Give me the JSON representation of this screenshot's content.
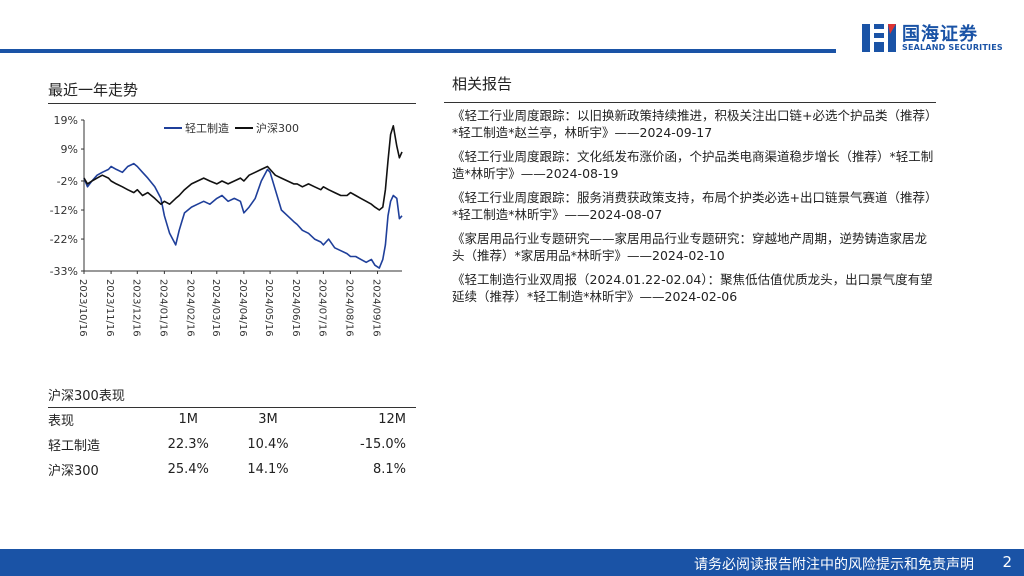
{
  "brand": {
    "name_cn": "国海证券",
    "name_en": "SEALAND SECURITIES",
    "color": "#1a53a6"
  },
  "left": {
    "title": "最近一年走势",
    "table": {
      "title": "沪深300表现",
      "header": [
        "表现",
        "1M",
        "3M",
        "12M"
      ],
      "rows": [
        [
          "轻工制造",
          "22.3%",
          "10.4%",
          "-15.0%"
        ],
        [
          "沪深300",
          "25.4%",
          "14.1%",
          "8.1%"
        ]
      ]
    }
  },
  "right": {
    "title": "相关报告",
    "reports": [
      "《轻工行业周度跟踪：以旧换新政策持续推进，积极关注出口链+必选个护品类（推荐）*轻工制造*赵兰亭，林昕宇》——2024-09-17",
      "《轻工行业周度跟踪：文化纸发布涨价函，个护品类电商渠道稳步增长（推荐）*轻工制造*林昕宇》——2024-08-19",
      "《轻工行业周度跟踪：服务消费获政策支持，布局个护类必选+出口链景气赛道（推荐）*轻工制造*林昕宇》——2024-08-07",
      "《家居用品行业专题研究——家居用品行业专题研究：穿越地产周期，逆势铸造家居龙头（推荐）*家居用品*林昕宇》——2024-02-10",
      "《轻工制造行业双周报（2024.01.22-02.04）：聚焦低估值优质龙头，出口景气度有望延续（推荐）*轻工制造*林昕宇》——2024-02-06"
    ]
  },
  "footer": {
    "disclaimer": "请务必阅读报告附注中的风险提示和免责声明",
    "page": "2"
  },
  "chart_data": {
    "type": "line",
    "title": "",
    "xlabel": "",
    "ylabel": "",
    "ylim": [
      -33,
      19
    ],
    "yticks": [
      "19%",
      "9%",
      "-2%",
      "-12%",
      "-22%",
      "-33%"
    ],
    "ytick_values": [
      19,
      9,
      -2,
      -12,
      -22,
      -33
    ],
    "xticks": [
      "2023/10/16",
      "2023/11/16",
      "2023/12/16",
      "2024/01/16",
      "2024/02/16",
      "2024/03/16",
      "2024/04/16",
      "2024/05/16",
      "2024/06/16",
      "2024/07/16",
      "2024/08/16",
      "2024/09/16"
    ],
    "grid": false,
    "legend": "top",
    "series": [
      {
        "name": "轻工制造",
        "color": "#1f3f9a",
        "x": [
          "2023/10/16",
          "2023/10/20",
          "2023/10/25",
          "2023/10/31",
          "2023/11/06",
          "2023/11/13",
          "2023/11/16",
          "2023/11/22",
          "2023/11/29",
          "2023/12/05",
          "2023/12/12",
          "2023/12/16",
          "2023/12/22",
          "2023/12/28",
          "2024/01/05",
          "2024/01/12",
          "2024/01/16",
          "2024/01/22",
          "2024/01/29",
          "2024/02/02",
          "2024/02/05",
          "2024/02/08",
          "2024/02/16",
          "2024/02/23",
          "2024/03/01",
          "2024/03/08",
          "2024/03/16",
          "2024/03/22",
          "2024/03/29",
          "2024/04/05",
          "2024/04/12",
          "2024/04/16",
          "2024/04/22",
          "2024/04/29",
          "2024/05/06",
          "2024/05/13",
          "2024/05/16",
          "2024/05/22",
          "2024/05/29",
          "2024/06/05",
          "2024/06/12",
          "2024/06/16",
          "2024/06/22",
          "2024/06/29",
          "2024/07/06",
          "2024/07/13",
          "2024/07/16",
          "2024/07/22",
          "2024/07/29",
          "2024/08/05",
          "2024/08/12",
          "2024/08/16",
          "2024/08/22",
          "2024/08/28",
          "2024/09/03",
          "2024/09/09",
          "2024/09/13",
          "2024/09/18",
          "2024/09/22",
          "2024/09/25",
          "2024/09/28",
          "2024/10/01",
          "2024/10/04",
          "2024/10/08",
          "2024/10/11",
          "2024/10/14"
        ],
        "values": [
          -1,
          -4,
          -2,
          0,
          1,
          2,
          3,
          2,
          1,
          3,
          4,
          3,
          1,
          -1,
          -4,
          -8,
          -14,
          -20,
          -24,
          -19,
          -16,
          -13,
          -11,
          -10,
          -9,
          -10,
          -8,
          -7,
          -9,
          -8,
          -9,
          -13,
          -11,
          -8,
          -2,
          2,
          1,
          -5,
          -12,
          -14,
          -16,
          -17,
          -19,
          -20,
          -22,
          -23,
          -24,
          -22,
          -25,
          -26,
          -27,
          -28,
          -28,
          -29,
          -30,
          -29,
          -31,
          -32,
          -29,
          -24,
          -14,
          -9,
          -7,
          -8,
          -15,
          -14
        ]
      },
      {
        "name": "沪深300",
        "color": "#111111",
        "x": [
          "2023/10/16",
          "2023/10/20",
          "2023/10/25",
          "2023/10/31",
          "2023/11/06",
          "2023/11/13",
          "2023/11/16",
          "2023/11/22",
          "2023/11/29",
          "2023/12/05",
          "2023/12/12",
          "2023/12/16",
          "2023/12/22",
          "2023/12/28",
          "2024/01/05",
          "2024/01/12",
          "2024/01/16",
          "2024/01/22",
          "2024/01/29",
          "2024/02/02",
          "2024/02/05",
          "2024/02/08",
          "2024/02/16",
          "2024/02/23",
          "2024/03/01",
          "2024/03/08",
          "2024/03/16",
          "2024/03/22",
          "2024/03/29",
          "2024/04/05",
          "2024/04/12",
          "2024/04/16",
          "2024/04/22",
          "2024/04/29",
          "2024/05/06",
          "2024/05/13",
          "2024/05/16",
          "2024/05/22",
          "2024/05/29",
          "2024/06/05",
          "2024/06/12",
          "2024/06/16",
          "2024/06/22",
          "2024/06/29",
          "2024/07/06",
          "2024/07/13",
          "2024/07/16",
          "2024/07/22",
          "2024/07/29",
          "2024/08/05",
          "2024/08/12",
          "2024/08/16",
          "2024/08/22",
          "2024/08/28",
          "2024/09/03",
          "2024/09/09",
          "2024/09/13",
          "2024/09/18",
          "2024/09/22",
          "2024/09/25",
          "2024/09/28",
          "2024/10/01",
          "2024/10/04",
          "2024/10/08",
          "2024/10/11",
          "2024/10/14"
        ],
        "values": [
          -1,
          -3,
          -2,
          -1,
          0,
          -1,
          -2,
          -3,
          -4,
          -5,
          -6,
          -5,
          -7,
          -6,
          -8,
          -10,
          -9,
          -10,
          -8,
          -7,
          -6,
          -5,
          -3,
          -2,
          -1,
          -2,
          -3,
          -2,
          -3,
          -2,
          -1,
          -2,
          0,
          1,
          2,
          3,
          2,
          0,
          -1,
          -2,
          -3,
          -3,
          -4,
          -3,
          -4,
          -5,
          -4,
          -5,
          -6,
          -7,
          -7,
          -6,
          -7,
          -8,
          -9,
          -10,
          -11,
          -12,
          -11,
          -5,
          5,
          14,
          17,
          10,
          6,
          8
        ]
      }
    ]
  }
}
